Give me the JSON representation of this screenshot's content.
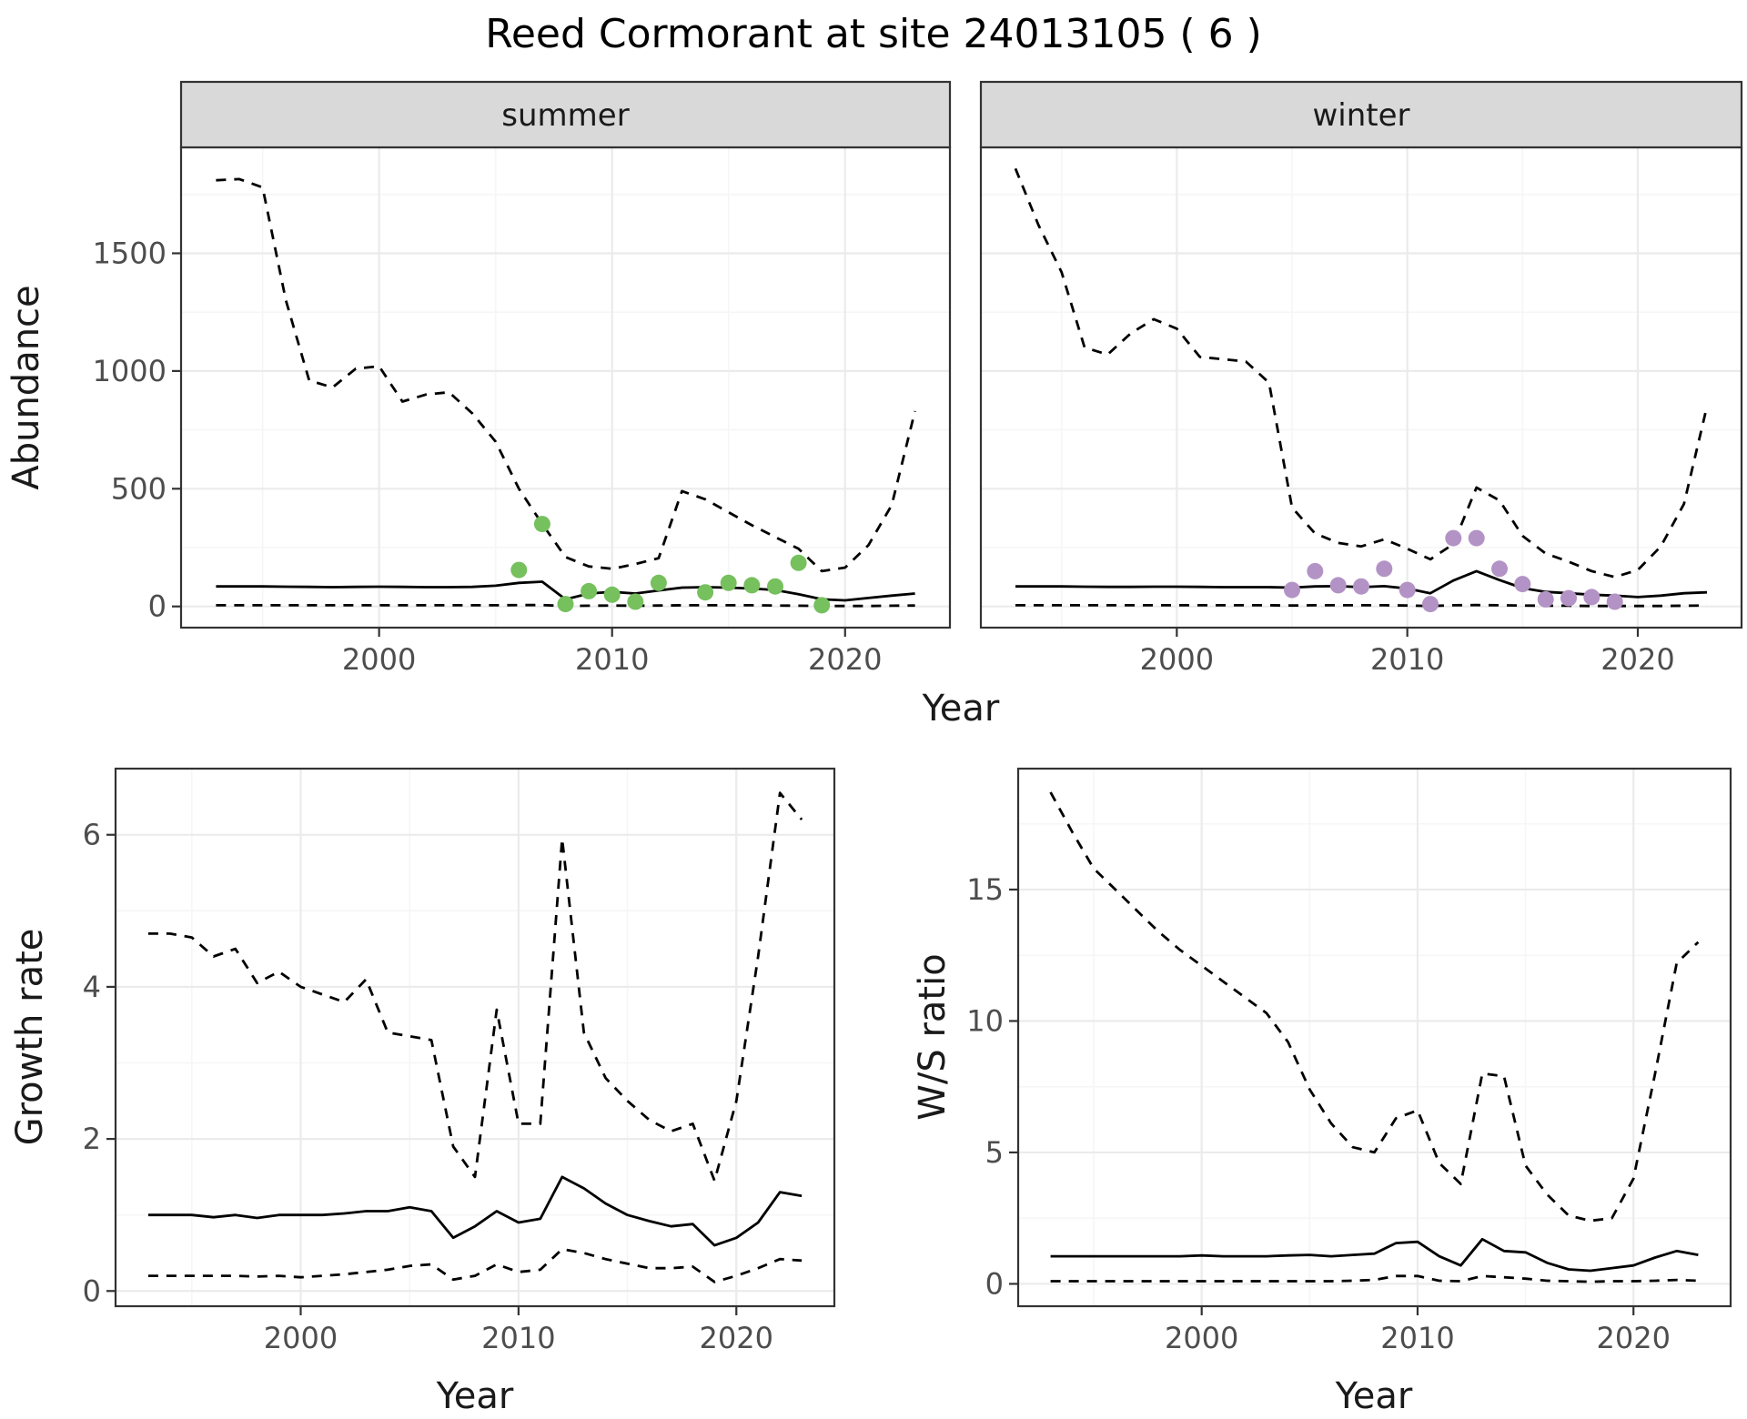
{
  "title": "Reed Cormorant at site 24013105 ( 6 )",
  "colors": {
    "summer_points": "#76c05e",
    "winter_points": "#b393c5",
    "line": "#000000",
    "grid_major": "#ebebeb",
    "grid_minor": "#f6f6f6",
    "panel_border": "#333333",
    "strip_bg": "#d9d9d9",
    "strip_text": "#1a1a1a",
    "tick_text": "#4d4d4d",
    "axis_title": "#1a1a1a",
    "background": "#ffffff"
  },
  "chart_data": [
    {
      "type": "line",
      "panel": "abundance-summer",
      "facet_label": "summer",
      "xlabel": "Year",
      "ylabel": "Abundance",
      "xlim": [
        1991.5,
        2024.5
      ],
      "ylim": [
        -90,
        1950
      ],
      "xticks": [
        2000,
        2010,
        2020
      ],
      "yticks": [
        0,
        500,
        1000,
        1500
      ],
      "grid": true,
      "legend": "none",
      "x": [
        1993,
        1994,
        1995,
        1996,
        1997,
        1998,
        1999,
        2000,
        2001,
        2002,
        2003,
        2004,
        2005,
        2006,
        2007,
        2008,
        2009,
        2010,
        2011,
        2012,
        2013,
        2014,
        2015,
        2016,
        2017,
        2018,
        2019,
        2020,
        2021,
        2022,
        2023
      ],
      "series": [
        {
          "name": "upper-ci",
          "style": "dashed",
          "values": [
            1810,
            1815,
            1780,
            1300,
            960,
            930,
            1010,
            1020,
            870,
            900,
            910,
            820,
            700,
            500,
            350,
            210,
            170,
            160,
            180,
            205,
            490,
            455,
            400,
            345,
            295,
            245,
            150,
            165,
            260,
            430,
            830
          ]
        },
        {
          "name": "median",
          "style": "solid",
          "values": [
            85,
            85,
            85,
            84,
            83,
            82,
            83,
            84,
            83,
            82,
            82,
            83,
            88,
            100,
            105,
            30,
            55,
            62,
            55,
            68,
            80,
            82,
            80,
            76,
            70,
            52,
            30,
            26,
            36,
            46,
            55
          ]
        },
        {
          "name": "lower-ci",
          "style": "dashed",
          "values": [
            5,
            5,
            5,
            5,
            5,
            5,
            5,
            5,
            5,
            5,
            5,
            5,
            5,
            6,
            6,
            2,
            3,
            4,
            3,
            4,
            5,
            5,
            5,
            5,
            4,
            3,
            2,
            2,
            2,
            3,
            4
          ]
        }
      ],
      "points": {
        "name": "observed-counts-summer",
        "color": "#76c05e",
        "x": [
          2006,
          2007,
          2008,
          2009,
          2010,
          2011,
          2012,
          2014,
          2015,
          2016,
          2017,
          2018,
          2019
        ],
        "y": [
          155,
          350,
          10,
          65,
          50,
          20,
          100,
          60,
          100,
          90,
          85,
          185,
          5
        ]
      }
    },
    {
      "type": "line",
      "panel": "abundance-winter",
      "facet_label": "winter",
      "xlabel": "Year",
      "ylabel": "Abundance",
      "xlim": [
        1991.5,
        2024.5
      ],
      "ylim": [
        -90,
        1950
      ],
      "xticks": [
        2000,
        2010,
        2020
      ],
      "yticks": [
        0,
        500,
        1000,
        1500
      ],
      "grid": true,
      "legend": "none",
      "x": [
        1993,
        1994,
        1995,
        1996,
        1997,
        1998,
        1999,
        2000,
        2001,
        2002,
        2003,
        2004,
        2005,
        2006,
        2007,
        2008,
        2009,
        2010,
        2011,
        2012,
        2013,
        2014,
        2015,
        2016,
        2017,
        2018,
        2019,
        2020,
        2021,
        2022,
        2023
      ],
      "series": [
        {
          "name": "upper-ci",
          "style": "dashed",
          "values": [
            1860,
            1620,
            1420,
            1100,
            1070,
            1160,
            1220,
            1180,
            1060,
            1050,
            1040,
            950,
            420,
            310,
            270,
            255,
            285,
            245,
            200,
            265,
            505,
            450,
            300,
            225,
            190,
            150,
            125,
            155,
            255,
            435,
            850
          ]
        },
        {
          "name": "median",
          "style": "solid",
          "values": [
            85,
            85,
            85,
            84,
            83,
            83,
            84,
            84,
            83,
            82,
            82,
            82,
            80,
            85,
            86,
            82,
            86,
            76,
            56,
            110,
            150,
            112,
            78,
            62,
            56,
            50,
            46,
            40,
            46,
            56,
            60
          ]
        },
        {
          "name": "lower-ci",
          "style": "dashed",
          "values": [
            5,
            5,
            5,
            5,
            5,
            5,
            5,
            5,
            5,
            5,
            5,
            5,
            4,
            5,
            5,
            5,
            5,
            4,
            2,
            5,
            6,
            5,
            4,
            3,
            3,
            2,
            2,
            2,
            2,
            3,
            4
          ]
        }
      ],
      "points": {
        "name": "observed-counts-winter",
        "color": "#b393c5",
        "x": [
          2005,
          2006,
          2007,
          2008,
          2009,
          2010,
          2011,
          2012,
          2013,
          2014,
          2015,
          2016,
          2017,
          2018,
          2019
        ],
        "y": [
          70,
          150,
          90,
          85,
          160,
          70,
          10,
          290,
          290,
          160,
          95,
          30,
          35,
          40,
          20
        ]
      }
    },
    {
      "type": "line",
      "panel": "growth-rate",
      "facet_label": "",
      "xlabel": "Year",
      "ylabel": "Growth rate",
      "xlim": [
        1991.5,
        2024.5
      ],
      "ylim": [
        -0.2,
        6.87
      ],
      "xticks": [
        2000,
        2010,
        2020
      ],
      "yticks": [
        0,
        2,
        4,
        6
      ],
      "grid": true,
      "legend": "none",
      "x": [
        1993,
        1994,
        1995,
        1996,
        1997,
        1998,
        1999,
        2000,
        2001,
        2002,
        2003,
        2004,
        2005,
        2006,
        2007,
        2008,
        2009,
        2010,
        2011,
        2012,
        2013,
        2014,
        2015,
        2016,
        2017,
        2018,
        2019,
        2020,
        2021,
        2022,
        2023
      ],
      "series": [
        {
          "name": "upper-ci",
          "style": "dashed",
          "values": [
            4.7,
            4.7,
            4.65,
            4.4,
            4.5,
            4.05,
            4.2,
            4.0,
            3.9,
            3.8,
            4.1,
            3.4,
            3.35,
            3.3,
            1.9,
            1.5,
            3.7,
            2.2,
            2.2,
            5.95,
            3.4,
            2.8,
            2.5,
            2.25,
            2.1,
            2.2,
            1.45,
            2.5,
            4.4,
            6.55,
            6.2
          ]
        },
        {
          "name": "median",
          "style": "solid",
          "values": [
            1.0,
            1.0,
            1.0,
            0.97,
            1.0,
            0.96,
            1.0,
            1.0,
            1.0,
            1.02,
            1.05,
            1.05,
            1.1,
            1.05,
            0.7,
            0.85,
            1.05,
            0.9,
            0.95,
            1.5,
            1.35,
            1.15,
            1.0,
            0.92,
            0.85,
            0.88,
            0.6,
            0.7,
            0.9,
            1.3,
            1.25
          ]
        },
        {
          "name": "lower-ci",
          "style": "dashed",
          "values": [
            0.2,
            0.2,
            0.2,
            0.2,
            0.2,
            0.19,
            0.2,
            0.18,
            0.2,
            0.22,
            0.25,
            0.28,
            0.33,
            0.35,
            0.15,
            0.2,
            0.35,
            0.25,
            0.28,
            0.55,
            0.5,
            0.42,
            0.36,
            0.3,
            0.3,
            0.32,
            0.12,
            0.2,
            0.3,
            0.42,
            0.4
          ]
        }
      ]
    },
    {
      "type": "line",
      "panel": "ws-ratio",
      "facet_label": "",
      "xlabel": "Year",
      "ylabel": "W/S ratio",
      "xlim": [
        1991.5,
        2024.5
      ],
      "ylim": [
        -0.85,
        19.6
      ],
      "xticks": [
        2000,
        2010,
        2020
      ],
      "yticks": [
        0,
        5,
        10,
        15
      ],
      "grid": true,
      "legend": "none",
      "x": [
        1993,
        1994,
        1995,
        1996,
        1997,
        1998,
        1999,
        2000,
        2001,
        2002,
        2003,
        2004,
        2005,
        2006,
        2007,
        2008,
        2009,
        2010,
        2011,
        2012,
        2013,
        2014,
        2015,
        2016,
        2017,
        2018,
        2019,
        2020,
        2021,
        2022,
        2023
      ],
      "series": [
        {
          "name": "upper-ci",
          "style": "dashed",
          "values": [
            18.7,
            17.2,
            15.8,
            15.0,
            14.2,
            13.4,
            12.7,
            12.1,
            11.5,
            10.9,
            10.3,
            9.2,
            7.4,
            6.1,
            5.2,
            5.0,
            6.3,
            6.6,
            4.6,
            3.8,
            8.0,
            7.9,
            4.5,
            3.4,
            2.6,
            2.4,
            2.5,
            4.0,
            8.0,
            12.2,
            13.0
          ]
        },
        {
          "name": "median",
          "style": "solid",
          "values": [
            1.05,
            1.05,
            1.05,
            1.05,
            1.05,
            1.05,
            1.05,
            1.08,
            1.05,
            1.05,
            1.05,
            1.08,
            1.1,
            1.05,
            1.1,
            1.15,
            1.55,
            1.6,
            1.05,
            0.7,
            1.7,
            1.25,
            1.2,
            0.8,
            0.55,
            0.5,
            0.6,
            0.7,
            1.0,
            1.25,
            1.1
          ]
        },
        {
          "name": "lower-ci",
          "style": "dashed",
          "values": [
            0.1,
            0.1,
            0.1,
            0.1,
            0.1,
            0.1,
            0.1,
            0.1,
            0.1,
            0.1,
            0.1,
            0.1,
            0.1,
            0.1,
            0.12,
            0.15,
            0.3,
            0.3,
            0.12,
            0.1,
            0.3,
            0.25,
            0.2,
            0.12,
            0.1,
            0.08,
            0.1,
            0.1,
            0.12,
            0.15,
            0.12
          ]
        }
      ]
    }
  ]
}
